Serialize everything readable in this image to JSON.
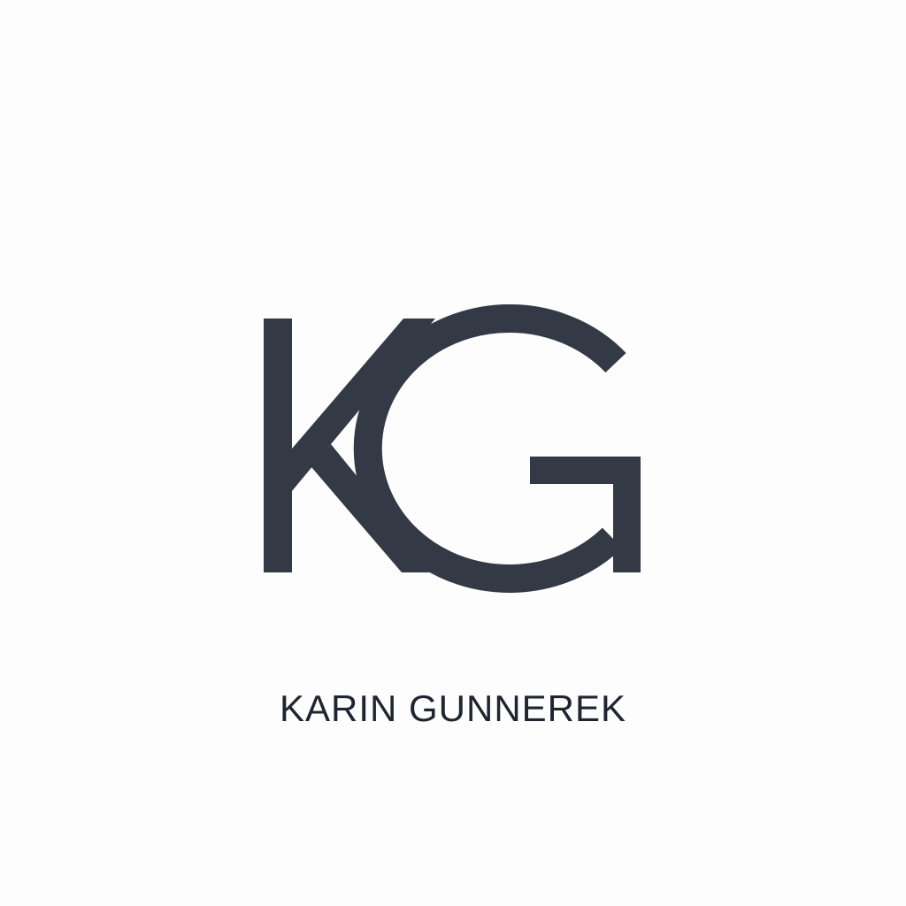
{
  "logo": {
    "monogram": "KG",
    "name": "KARIN GUNNEREK",
    "colors": {
      "ink": "#333a45",
      "text": "#1f2530",
      "background": "#fdfdfd"
    }
  }
}
